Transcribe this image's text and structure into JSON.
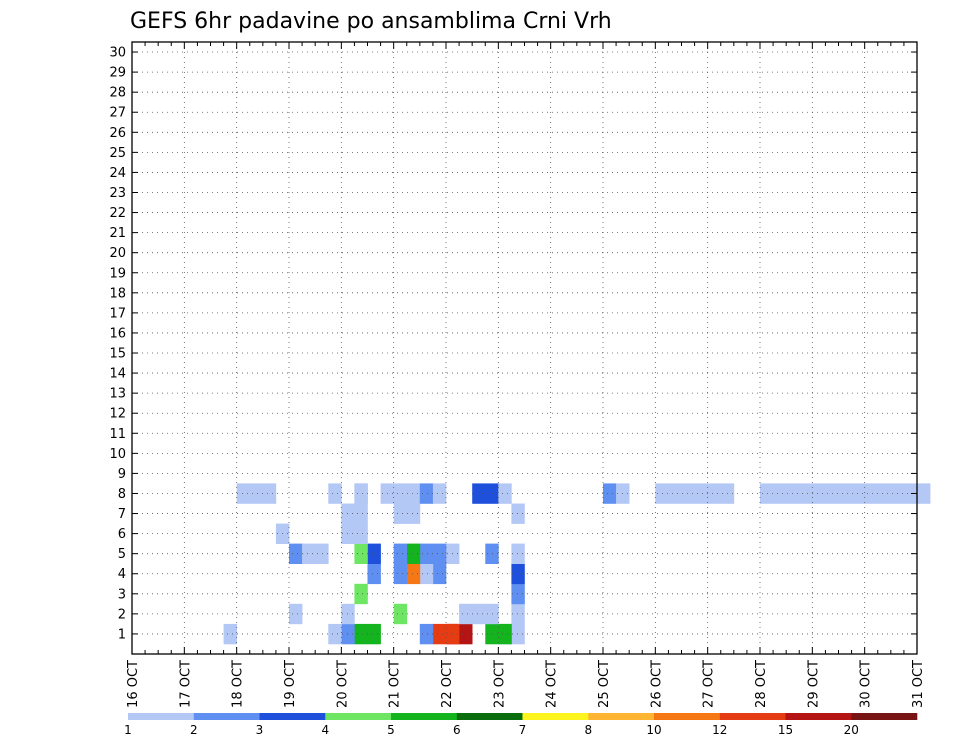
{
  "chart_data": {
    "type": "heatmap",
    "title": "GEFS 6hr padavine po ansamblima Crni Vrh",
    "x_labels": [
      "16 OCT",
      "17 OCT",
      "18 OCT",
      "19 OCT",
      "20 OCT",
      "21 OCT",
      "22 OCT",
      "23 OCT",
      "24 OCT",
      "25 OCT",
      "26 OCT",
      "27 OCT",
      "28 OCT",
      "29 OCT",
      "30 OCT",
      "31 OCT"
    ],
    "y_labels": [
      "1",
      "2",
      "3",
      "4",
      "5",
      "6",
      "7",
      "8",
      "9",
      "10",
      "11",
      "12",
      "13",
      "14",
      "15",
      "16",
      "17",
      "18",
      "19",
      "20",
      "21",
      "22",
      "23",
      "24",
      "25",
      "26",
      "27",
      "28",
      "29",
      "30"
    ],
    "xlim": [
      0,
      60
    ],
    "ylim": [
      0,
      30
    ],
    "grid": true,
    "colorbar": {
      "labels": [
        "1",
        "2",
        "3",
        "4",
        "5",
        "6",
        "7",
        "8",
        "10",
        "12",
        "15",
        "20"
      ],
      "colors": [
        "#b4c8f5",
        "#5f8ff0",
        "#1e50dc",
        "#6ee664",
        "#14b41e",
        "#0a6e0f",
        "#fff51e",
        "#ffb432",
        "#f57814",
        "#e63c14",
        "#b41414",
        "#781414"
      ]
    },
    "cells": [
      [
        1,
        29,
        1,
        "#b4c8f5"
      ],
      [
        1,
        28,
        1,
        "#b4c8f5"
      ],
      [
        1,
        27,
        2,
        "#14b41e"
      ],
      [
        1,
        24,
        2,
        "#b41414"
      ],
      [
        1,
        23,
        2,
        "#e63c14"
      ],
      [
        1,
        22,
        1,
        "#5f8ff0"
      ],
      [
        1,
        18,
        1,
        "#14b41e"
      ],
      [
        1,
        17,
        1,
        "#14b41e"
      ],
      [
        1,
        16,
        1,
        "#5f8ff0"
      ],
      [
        1,
        15,
        1,
        "#b4c8f5"
      ],
      [
        1,
        7,
        1,
        "#b4c8f5"
      ],
      [
        2,
        29,
        1,
        "#b4c8f5"
      ],
      [
        2,
        20,
        1,
        "#6ee664"
      ],
      [
        2,
        16,
        1,
        "#b4c8f5"
      ],
      [
        2,
        12,
        1,
        "#b4c8f5"
      ],
      [
        2,
        25,
        1,
        "#b4c8f5"
      ],
      [
        2,
        26,
        1,
        "#b4c8f5"
      ],
      [
        2,
        27,
        1,
        "#b4c8f5"
      ],
      [
        3,
        29,
        1,
        "#5f8ff0"
      ],
      [
        3,
        17,
        1,
        "#6ee664"
      ],
      [
        4,
        29,
        1,
        "#1e50dc"
      ],
      [
        4,
        23,
        1,
        "#5f8ff0"
      ],
      [
        4,
        22,
        1,
        "#b4c8f5"
      ],
      [
        4,
        21,
        1,
        "#f57814"
      ],
      [
        4,
        20,
        1,
        "#5f8ff0"
      ],
      [
        4,
        18,
        1,
        "#5f8ff0"
      ],
      [
        5,
        29,
        1,
        "#b4c8f5"
      ],
      [
        5,
        27,
        1,
        "#5f8ff0"
      ],
      [
        5,
        24,
        1,
        "#b4c8f5"
      ],
      [
        5,
        23,
        1,
        "#5f8ff0"
      ],
      [
        5,
        22,
        1,
        "#5f8ff0"
      ],
      [
        5,
        21,
        1,
        "#14b41e"
      ],
      [
        5,
        20,
        1,
        "#5f8ff0"
      ],
      [
        5,
        18,
        1,
        "#1e50dc"
      ],
      [
        5,
        17,
        1,
        "#6ee664"
      ],
      [
        5,
        12,
        1,
        "#5f8ff0"
      ],
      [
        5,
        13,
        1,
        "#b4c8f5"
      ],
      [
        5,
        14,
        1,
        "#b4c8f5"
      ],
      [
        6,
        17,
        1,
        "#b4c8f5"
      ],
      [
        6,
        16,
        1,
        "#b4c8f5"
      ],
      [
        6,
        11,
        1,
        "#b4c8f5"
      ],
      [
        7,
        29,
        1,
        "#b4c8f5"
      ],
      [
        7,
        21,
        1,
        "#b4c8f5"
      ],
      [
        7,
        20,
        1,
        "#b4c8f5"
      ],
      [
        7,
        17,
        1,
        "#b4c8f5"
      ],
      [
        7,
        16,
        1,
        "#b4c8f5"
      ],
      [
        8,
        8,
        2,
        "#b4c8f5"
      ],
      [
        8,
        10,
        1,
        "#b4c8f5"
      ],
      [
        8,
        15,
        1,
        "#b4c8f5"
      ],
      [
        8,
        17,
        1,
        "#b4c8f5"
      ],
      [
        8,
        19,
        1,
        "#b4c8f5"
      ],
      [
        8,
        20,
        1,
        "#b4c8f5"
      ],
      [
        8,
        21,
        1,
        "#b4c8f5"
      ],
      [
        8,
        17,
        1,
        "#b4c8f5"
      ],
      [
        8,
        22,
        1,
        "#5f8ff0"
      ],
      [
        8,
        23,
        1,
        "#b4c8f5"
      ],
      [
        8,
        26,
        1,
        "#1e50dc"
      ],
      [
        8,
        27,
        1,
        "#1e50dc"
      ],
      [
        8,
        28,
        1,
        "#b4c8f5"
      ],
      [
        8,
        36,
        1,
        "#5f8ff0"
      ],
      [
        8,
        37,
        1,
        "#b4c8f5"
      ],
      [
        8,
        40,
        1,
        "#b4c8f5"
      ],
      [
        8,
        41,
        1,
        "#b4c8f5"
      ],
      [
        8,
        42,
        1,
        "#b4c8f5"
      ],
      [
        8,
        43,
        1,
        "#b4c8f5"
      ],
      [
        8,
        44,
        1,
        "#b4c8f5"
      ],
      [
        8,
        45,
        1,
        "#b4c8f5"
      ],
      [
        8,
        48,
        1,
        "#b4c8f5"
      ],
      [
        8,
        49,
        1,
        "#b4c8f5"
      ],
      [
        8,
        50,
        1,
        "#b4c8f5"
      ],
      [
        8,
        51,
        1,
        "#b4c8f5"
      ],
      [
        8,
        52,
        1,
        "#b4c8f5"
      ],
      [
        8,
        53,
        1,
        "#b4c8f5"
      ],
      [
        8,
        54,
        1,
        "#b4c8f5"
      ],
      [
        8,
        55,
        1,
        "#b4c8f5"
      ],
      [
        8,
        56,
        1,
        "#b4c8f5"
      ],
      [
        8,
        57,
        1,
        "#b4c8f5"
      ],
      [
        8,
        58,
        1,
        "#b4c8f5"
      ],
      [
        8,
        59,
        1,
        "#b4c8f5"
      ],
      [
        8,
        60,
        1,
        "#b4c8f5"
      ]
    ]
  }
}
